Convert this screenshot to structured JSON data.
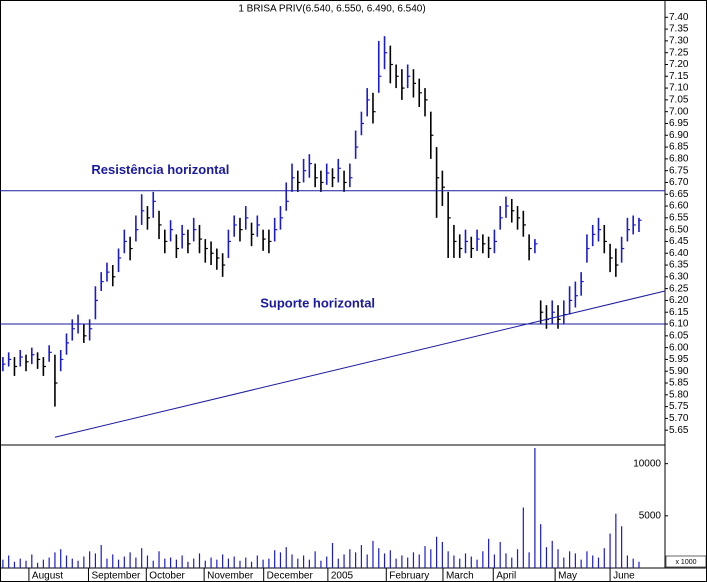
{
  "chart_data": {
    "type": "ohlc",
    "title": "1 BRISA PRIV(6.540, 6.550, 6.490, 6.540)",
    "color": "#1a1ad0",
    "down_color": "#000000",
    "high": [
      5.96,
      5.98,
      5.96,
      5.99,
      5.97,
      6.0,
      5.98,
      5.96,
      6.01,
      5.97,
      5.99,
      6.06,
      6.12,
      6.14,
      6.1,
      6.12,
      6.26,
      6.32,
      6.36,
      6.35,
      6.42,
      6.5,
      6.47,
      6.56,
      6.65,
      6.6,
      6.66,
      6.58,
      6.5,
      6.54,
      6.48,
      6.52,
      6.5,
      6.55,
      6.52,
      6.46,
      6.45,
      6.42,
      6.4,
      6.5,
      6.56,
      6.55,
      6.6,
      6.53,
      6.56,
      6.5,
      6.5,
      6.55,
      6.6,
      6.7,
      6.78,
      6.75,
      6.8,
      6.82,
      6.78,
      6.75,
      6.78,
      6.76,
      6.8,
      6.75,
      6.78,
      6.92,
      7.0,
      7.1,
      7.08,
      7.3,
      7.32,
      7.28,
      7.2,
      7.18,
      7.2,
      7.18,
      7.14,
      7.1,
      7.0,
      6.85,
      6.75,
      6.66,
      6.52,
      6.48,
      6.5,
      6.47,
      6.5,
      6.48,
      6.47,
      6.5,
      6.6,
      6.64,
      6.63,
      6.6,
      6.58,
      6.48,
      6.46,
      6.2,
      6.18,
      6.2,
      6.18,
      6.2,
      6.26,
      6.28,
      6.32,
      6.48,
      6.52,
      6.55,
      6.52,
      6.44,
      6.42,
      6.47,
      6.55,
      6.56,
      6.55
    ],
    "low": [
      5.9,
      5.92,
      5.88,
      5.92,
      5.9,
      5.93,
      5.91,
      5.88,
      5.94,
      5.75,
      5.9,
      5.97,
      6.03,
      6.06,
      6.02,
      6.03,
      6.12,
      6.24,
      6.28,
      6.26,
      6.32,
      6.4,
      6.37,
      6.45,
      6.52,
      6.5,
      6.55,
      6.46,
      6.4,
      6.45,
      6.38,
      6.42,
      6.4,
      6.45,
      6.4,
      6.36,
      6.35,
      6.33,
      6.3,
      6.38,
      6.47,
      6.45,
      6.5,
      6.43,
      6.47,
      6.41,
      6.4,
      6.45,
      6.5,
      6.58,
      6.66,
      6.66,
      6.7,
      6.72,
      6.68,
      6.66,
      6.69,
      6.68,
      6.7,
      6.66,
      6.68,
      6.8,
      6.9,
      6.98,
      6.95,
      7.08,
      7.18,
      7.12,
      7.1,
      7.05,
      7.1,
      7.06,
      7.02,
      6.98,
      6.8,
      6.55,
      6.6,
      6.38,
      6.38,
      6.38,
      6.4,
      6.38,
      6.41,
      6.4,
      6.38,
      6.4,
      6.5,
      6.55,
      6.53,
      6.5,
      6.47,
      6.37,
      6.4,
      6.1,
      6.08,
      6.1,
      6.08,
      6.1,
      6.14,
      6.17,
      6.22,
      6.36,
      6.43,
      6.45,
      6.4,
      6.32,
      6.3,
      6.36,
      6.45,
      6.48,
      6.49
    ],
    "close": [
      5.93,
      5.95,
      5.92,
      5.96,
      5.94,
      5.97,
      5.95,
      5.92,
      5.98,
      5.85,
      5.95,
      6.02,
      6.08,
      6.1,
      6.05,
      6.08,
      6.2,
      6.28,
      6.32,
      6.3,
      6.38,
      6.45,
      6.42,
      6.5,
      6.58,
      6.55,
      6.62,
      6.52,
      6.45,
      6.5,
      6.42,
      6.48,
      6.44,
      6.5,
      6.46,
      6.42,
      6.4,
      6.38,
      6.35,
      6.45,
      6.52,
      6.5,
      6.55,
      6.48,
      6.52,
      6.46,
      6.45,
      6.5,
      6.55,
      6.62,
      6.72,
      6.7,
      6.75,
      6.78,
      6.72,
      6.7,
      6.74,
      6.72,
      6.76,
      6.7,
      6.72,
      6.85,
      6.95,
      7.05,
      7.0,
      7.15,
      7.25,
      7.2,
      7.15,
      7.1,
      7.15,
      7.12,
      7.08,
      7.05,
      6.9,
      6.72,
      6.68,
      6.55,
      6.45,
      6.42,
      6.45,
      6.42,
      6.46,
      6.44,
      6.42,
      6.45,
      6.55,
      6.6,
      6.58,
      6.55,
      6.52,
      6.42,
      6.44,
      6.15,
      6.12,
      6.15,
      6.12,
      6.14,
      6.2,
      6.22,
      6.28,
      6.42,
      6.48,
      6.5,
      6.45,
      6.38,
      6.35,
      6.42,
      6.5,
      6.52,
      6.54
    ],
    "volume": [
      800,
      1200,
      600,
      900,
      700,
      1300,
      500,
      800,
      1000,
      1500,
      1800,
      1200,
      900,
      700,
      1100,
      1600,
      1400,
      2200,
      900,
      1300,
      800,
      1100,
      1500,
      1000,
      1900,
      1200,
      700,
      1600,
      900,
      1000,
      800,
      1200,
      600,
      900,
      1400,
      700,
      1000,
      800,
      1300,
      900,
      1100,
      700,
      1000,
      600,
      1200,
      800,
      900,
      1700,
      1500,
      2000,
      1300,
      900,
      1200,
      800,
      1600,
      700,
      1100,
      2400,
      900,
      1300,
      1800,
      1500,
      2200,
      1300,
      2600,
      1900,
      1400,
      1700,
      900,
      1200,
      1000,
      1500,
      1300,
      2100,
      1800,
      3000,
      2500,
      1600,
      1200,
      900,
      1400,
      1100,
      800,
      1600,
      2800,
      1300,
      2500,
      1400,
      1000,
      1800,
      5800,
      1500,
      11500,
      4200,
      2000,
      2600,
      1800,
      1000,
      1600,
      1400,
      800,
      1600,
      1200,
      1000,
      1900,
      3300,
      5200,
      4000,
      1200,
      900,
      600
    ],
    "xlim": [
      0,
      115
    ],
    "xticks": [
      {
        "value": 5,
        "label": "August"
      },
      {
        "value": 15.3,
        "label": "September"
      },
      {
        "value": 25.3,
        "label": "October"
      },
      {
        "value": 35.3,
        "label": "November"
      },
      {
        "value": 45.6,
        "label": "December"
      },
      {
        "value": 56.7,
        "label": "2005"
      },
      {
        "value": 66.8,
        "label": "February"
      },
      {
        "value": 76.6,
        "label": "March"
      },
      {
        "value": 85.3,
        "label": "April"
      },
      {
        "value": 96,
        "label": "May"
      },
      {
        "value": 105.5,
        "label": "June"
      }
    ],
    "ylim": [
      5.6,
      7.45
    ],
    "yticks": [
      {
        "value": 7.4,
        "label": "7.40"
      },
      7.35,
      {
        "value": 7.3,
        "label": "7.30"
      },
      7.25,
      {
        "value": 7.2,
        "label": "7.20"
      },
      7.15,
      {
        "value": 7.1,
        "label": "7.10"
      },
      7.05,
      {
        "value": 7,
        "label": "7.00"
      },
      6.95,
      {
        "value": 6.9,
        "label": "6.90"
      },
      6.85,
      {
        "value": 6.8,
        "label": "6.80"
      },
      6.75,
      {
        "value": 6.7,
        "label": "6.70"
      },
      6.65,
      {
        "value": 6.6,
        "label": "6.60"
      },
      6.55,
      {
        "value": 6.5,
        "label": "6.50"
      },
      6.45,
      {
        "value": 6.4,
        "label": "6.40"
      },
      6.35,
      {
        "value": 6.3,
        "label": "6.30"
      },
      6.25,
      {
        "value": 6.2,
        "label": "6.20"
      },
      6.15,
      {
        "value": 6.1,
        "label": "6.10"
      },
      6.05,
      {
        "value": 6,
        "label": "6.00"
      },
      5.95,
      {
        "value": 5.9,
        "label": "5.90"
      },
      5.85,
      {
        "value": 5.8,
        "label": "5.80"
      },
      5.75,
      {
        "value": 5.7,
        "label": "5.70"
      },
      5.65
    ],
    "volume_ylim": [
      0,
      11500
    ],
    "volume_yticks": [
      5000,
      10000
    ],
    "volume_label": "x 1000",
    "annotations": [
      {
        "text": "Resistência horizontal",
        "value": 6.665,
        "x": 15.8
      },
      {
        "text": "Suporte horizontal",
        "value": 6.1,
        "x": 45
      }
    ],
    "trendline": {
      "x": [
        9.5,
        115
      ],
      "y": [
        5.62,
        6.24
      ]
    },
    "line_color": "#1a1aa0"
  }
}
